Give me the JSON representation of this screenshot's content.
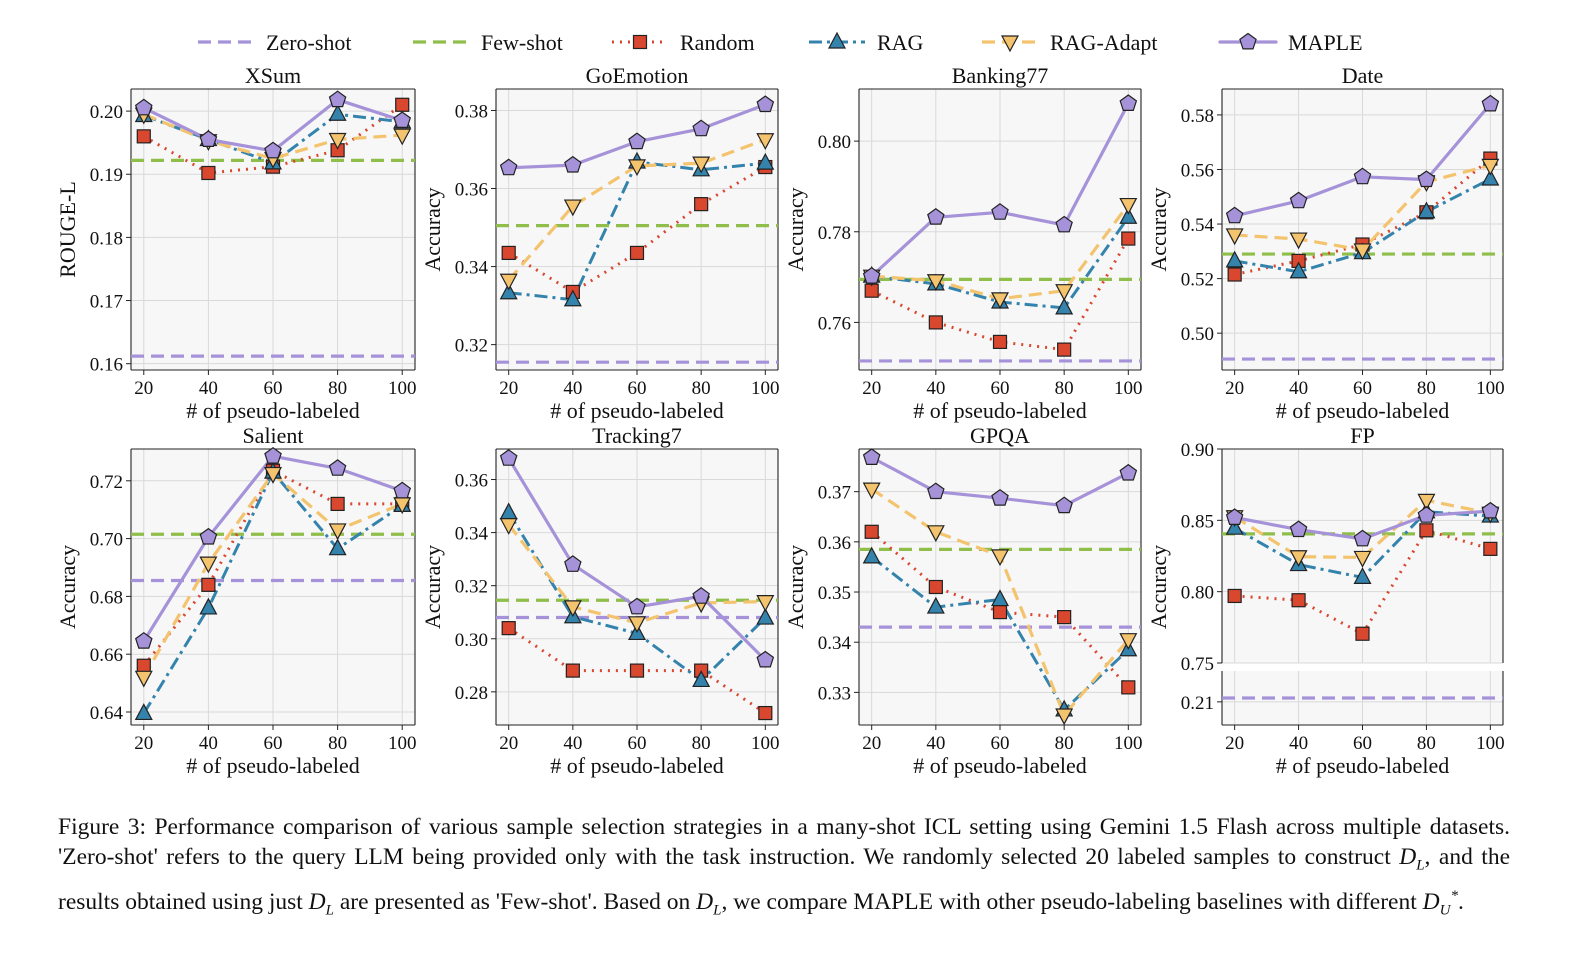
{
  "legend": {
    "items": [
      {
        "label": "Zero-shot",
        "style": "dashed",
        "marker": "none",
        "color": "#a592d8"
      },
      {
        "label": "Few-shot",
        "style": "dashed",
        "marker": "none",
        "color": "#8fbe4b"
      },
      {
        "label": "Random",
        "style": "dotted",
        "marker": "square",
        "color": "#d9472f"
      },
      {
        "label": "RAG",
        "style": "dashdot",
        "marker": "triangle-up",
        "color": "#3483ad"
      },
      {
        "label": "RAG-Adapt",
        "style": "dashed",
        "marker": "triangle-down",
        "color": "#f3c36e"
      },
      {
        "label": "MAPLE",
        "style": "solid",
        "marker": "pentagon",
        "color": "#a592d8"
      }
    ]
  },
  "colors": {
    "zero_shot": "#a592d8",
    "few_shot": "#8fbe4b",
    "random": "#d9472f",
    "rag": "#3483ad",
    "rag_adapt": "#f3c36e",
    "maple": "#a592d8",
    "axes_bg": "#f7f7f7",
    "grid": "#d9d9d9"
  },
  "chart_data": [
    {
      "type": "line",
      "title": "XSum",
      "xlabel": "# of pseudo-labeled",
      "ylabel": "ROUGE-L",
      "x": [
        20,
        40,
        60,
        80,
        100
      ],
      "ylim": [
        0.159,
        0.2035
      ],
      "yticks": [
        "0.16",
        "0.17",
        "0.18",
        "0.19",
        "0.20"
      ],
      "baselines": {
        "zero_shot": 0.1612,
        "few_shot": 0.1922
      },
      "series": [
        {
          "name": "Random",
          "values": [
            0.196,
            0.1902,
            0.1912,
            0.1938,
            0.201
          ]
        },
        {
          "name": "RAG",
          "values": [
            0.1993,
            0.1955,
            0.1918,
            0.1995,
            0.1983
          ]
        },
        {
          "name": "RAG-Adapt",
          "values": [
            0.1995,
            0.1953,
            0.1925,
            0.1955,
            0.1962
          ]
        },
        {
          "name": "MAPLE",
          "values": [
            0.2005,
            0.1955,
            0.1937,
            0.2018,
            0.1985
          ]
        }
      ]
    },
    {
      "type": "line",
      "title": "GoEmotion",
      "xlabel": "# of pseudo-labeled",
      "ylabel": "Accuracy",
      "x": [
        20,
        40,
        60,
        80,
        100
      ],
      "ylim": [
        0.3135,
        0.3855
      ],
      "yticks": [
        "0.32",
        "0.34",
        "0.36",
        "0.38"
      ],
      "baselines": {
        "zero_shot": 0.3155,
        "few_shot": 0.3505
      },
      "series": [
        {
          "name": "Random",
          "values": [
            0.3435,
            0.3335,
            0.3435,
            0.356,
            0.3655
          ]
        },
        {
          "name": "RAG",
          "values": [
            0.3333,
            0.3315,
            0.3668,
            0.3648,
            0.3665
          ]
        },
        {
          "name": "RAG-Adapt",
          "values": [
            0.3365,
            0.3555,
            0.3658,
            0.3665,
            0.3725
          ]
        },
        {
          "name": "MAPLE",
          "values": [
            0.3653,
            0.366,
            0.372,
            0.3753,
            0.3815
          ]
        }
      ]
    },
    {
      "type": "line",
      "title": "Banking77",
      "xlabel": "# of pseudo-labeled",
      "ylabel": "Accuracy",
      "x": [
        20,
        40,
        60,
        80,
        100
      ],
      "ylim": [
        0.7495,
        0.8115
      ],
      "yticks": [
        "0.76",
        "0.78",
        "0.80"
      ],
      "baselines": {
        "zero_shot": 0.7515,
        "few_shot": 0.7695
      },
      "series": [
        {
          "name": "Random",
          "values": [
            0.767,
            0.76,
            0.7557,
            0.754,
            0.7785
          ]
        },
        {
          "name": "RAG",
          "values": [
            0.7702,
            0.7685,
            0.7645,
            0.7632,
            0.7832
          ]
        },
        {
          "name": "RAG-Adapt",
          "values": [
            0.7702,
            0.7692,
            0.7652,
            0.767,
            0.786
          ]
        },
        {
          "name": "MAPLE",
          "values": [
            0.7702,
            0.7832,
            0.7843,
            0.7815,
            0.8083
          ]
        }
      ]
    },
    {
      "type": "line",
      "title": "Date",
      "xlabel": "# of pseudo-labeled",
      "ylabel": "Accuracy",
      "x": [
        20,
        40,
        60,
        80,
        100
      ],
      "ylim": [
        0.4865,
        0.5895
      ],
      "yticks": [
        "0.50",
        "0.52",
        "0.54",
        "0.56",
        "0.58"
      ],
      "baselines": {
        "zero_shot": 0.4905,
        "few_shot": 0.529
      },
      "series": [
        {
          "name": "Random",
          "values": [
            0.5215,
            0.5265,
            0.5325,
            0.5443,
            0.564
          ]
        },
        {
          "name": "RAG",
          "values": [
            0.5265,
            0.5225,
            0.5295,
            0.5445,
            0.5565
          ]
        },
        {
          "name": "RAG-Adapt",
          "values": [
            0.536,
            0.5345,
            0.5305,
            0.5555,
            0.5615
          ]
        },
        {
          "name": "MAPLE",
          "values": [
            0.543,
            0.5485,
            0.5573,
            0.5563,
            0.584
          ]
        }
      ]
    },
    {
      "type": "line",
      "title": "Salient",
      "xlabel": "# of pseudo-labeled",
      "ylabel": "Accuracy",
      "x": [
        20,
        40,
        60,
        80,
        100
      ],
      "ylim": [
        0.6355,
        0.731
      ],
      "yticks": [
        "0.64",
        "0.66",
        "0.68",
        "0.70",
        "0.72"
      ],
      "baselines": {
        "zero_shot": 0.6855,
        "few_shot": 0.7015
      },
      "series": [
        {
          "name": "Random",
          "values": [
            0.656,
            0.684,
            0.7235,
            0.712,
            0.712
          ]
        },
        {
          "name": "RAG",
          "values": [
            0.6395,
            0.676,
            0.723,
            0.6965,
            0.7115
          ]
        },
        {
          "name": "RAG-Adapt",
          "values": [
            0.652,
            0.6915,
            0.7225,
            0.703,
            0.712
          ]
        },
        {
          "name": "MAPLE",
          "values": [
            0.6645,
            0.7005,
            0.7285,
            0.7243,
            0.7165
          ]
        }
      ]
    },
    {
      "type": "line",
      "title": "Tracking7",
      "xlabel": "# of pseudo-labeled",
      "ylabel": "Accuracy",
      "x": [
        20,
        40,
        60,
        80,
        100
      ],
      "ylim": [
        0.2675,
        0.3715
      ],
      "yticks": [
        "0.28",
        "0.30",
        "0.32",
        "0.34",
        "0.36"
      ],
      "baselines": {
        "zero_shot": 0.308,
        "few_shot": 0.3145
      },
      "series": [
        {
          "name": "Random",
          "values": [
            0.304,
            0.288,
            0.288,
            0.288,
            0.272
          ]
        },
        {
          "name": "RAG",
          "values": [
            0.3475,
            0.3083,
            0.302,
            0.2843,
            0.3078
          ]
        },
        {
          "name": "RAG-Adapt",
          "values": [
            0.343,
            0.312,
            0.306,
            0.3135,
            0.314
          ]
        },
        {
          "name": "MAPLE",
          "values": [
            0.368,
            0.328,
            0.312,
            0.316,
            0.292
          ]
        }
      ]
    },
    {
      "type": "line",
      "title": "GPQA",
      "xlabel": "# of pseudo-labeled",
      "ylabel": "Accuracy",
      "x": [
        20,
        40,
        60,
        80,
        100
      ],
      "ylim": [
        0.3235,
        0.3785
      ],
      "yticks": [
        "0.33",
        "0.34",
        "0.35",
        "0.36",
        "0.37"
      ],
      "baselines": {
        "zero_shot": 0.343,
        "few_shot": 0.3585
      },
      "series": [
        {
          "name": "Random",
          "values": [
            0.362,
            0.351,
            0.346,
            0.345,
            0.331
          ]
        },
        {
          "name": "RAG",
          "values": [
            0.357,
            0.347,
            0.3485,
            0.3265,
            0.3385
          ]
        },
        {
          "name": "RAG-Adapt",
          "values": [
            0.3705,
            0.362,
            0.3572,
            0.3255,
            0.3405
          ]
        },
        {
          "name": "MAPLE",
          "values": [
            0.3768,
            0.37,
            0.3687,
            0.3672,
            0.3737
          ]
        }
      ]
    },
    {
      "type": "line",
      "title": "FP",
      "xlabel": "# of pseudo-labeled",
      "ylabel": "Accuracy",
      "x": [
        20,
        40,
        60,
        80,
        100
      ],
      "broken_axis": true,
      "ylim": [
        0.75,
        0.9
      ],
      "yticks": [
        "0.75",
        "0.80",
        "0.85",
        "0.90"
      ],
      "lower_ylim": [
        0.195,
        0.23
      ],
      "lower_yticks": [
        "0.21"
      ],
      "baselines": {
        "zero_shot": 0.2125,
        "few_shot": 0.8405
      },
      "series": [
        {
          "name": "Random",
          "values": [
            0.797,
            0.794,
            0.7705,
            0.843,
            0.83
          ]
        },
        {
          "name": "RAG",
          "values": [
            0.8445,
            0.819,
            0.81,
            0.856,
            0.853
          ]
        },
        {
          "name": "RAG-Adapt",
          "values": [
            0.8525,
            0.8245,
            0.824,
            0.864,
            0.855
          ]
        },
        {
          "name": "MAPLE",
          "values": [
            0.852,
            0.8435,
            0.837,
            0.8535,
            0.8565
          ]
        }
      ]
    }
  ],
  "caption": {
    "part1": "Figure 3: Performance comparison of various sample selection strategies in a many-shot ICL setting using Gemini 1.5 Flash across multiple datasets. 'Zero-shot' refers to the query LLM being provided only with the task instruction. We randomly selected 20 labeled samples to construct ",
    "sym_DL": "D",
    "sub_L": "L",
    "part2": ", and the results obtained using just ",
    "part3": " are presented as 'Few-shot'. Based on ",
    "part4": ", we compare MAPLE with other pseudo-labeling baselines with different ",
    "sub_U": "U",
    "sup_star": "*",
    "part5": "."
  }
}
